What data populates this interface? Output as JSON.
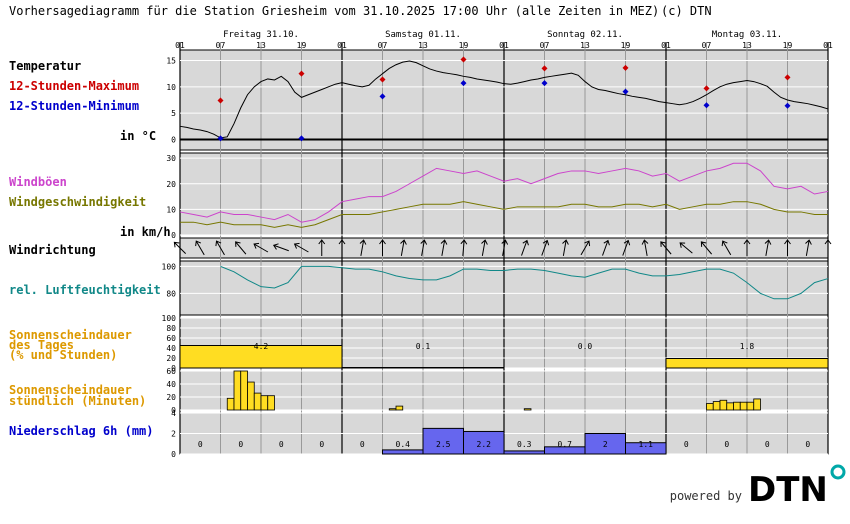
{
  "header": {
    "title": "Vorhersagediagramm für die Station Griesheim vom 31.10.2025 17:00 Uhr (alle Zeiten in MEZ)",
    "copyright": "(c) DTN"
  },
  "days": [
    {
      "label": "Freitag 31.10."
    },
    {
      "label": "Samstag 01.11."
    },
    {
      "label": "Sonntag 02.11."
    },
    {
      "label": "Montag 03.11."
    }
  ],
  "hour_ticks": [
    "01",
    "07",
    "13",
    "19",
    "01",
    "07",
    "13",
    "19",
    "01",
    "07",
    "13",
    "19",
    "01",
    "07",
    "13",
    "19",
    "01"
  ],
  "labels": {
    "temperature": "Temperatur",
    "max12": "12-Stunden-Maximum",
    "min12": "12-Stunden-Minimum",
    "unit_c": "in °C",
    "gusts": "Windböen",
    "windspeed": "Windgeschwindigkeit",
    "unit_kmh": "in km/h",
    "winddir": "Windrichtung",
    "humidity": "rel. Luftfeuchtigkeit",
    "sun_day_1": "Sonnenscheindauer",
    "sun_day_2": "des Tages",
    "sun_day_3": "(% und Stunden)",
    "sun_hour_1": "Sonnenscheindauer",
    "sun_hour_2": "stündlich (Minuten)",
    "precip": "Niederschlag 6h (mm)"
  },
  "footer": {
    "powered_by": "powered by",
    "logo": "DTN"
  },
  "colors": {
    "panel_bg": "#d8d8d8",
    "max": "#cc0000",
    "min": "#0000cc",
    "gust": "#cc44cc",
    "wind": "#777700",
    "humidity": "#118888",
    "sun": "#ffdd22",
    "precip": "#6666ee",
    "sun_label": "#dd9900",
    "logo_dot": "#00a8a8"
  },
  "chart_data": [
    {
      "type": "line",
      "name": "temperature",
      "x_unit": "hours since 31.10. 01:00",
      "xlim": [
        0,
        96
      ],
      "ylim": [
        -2,
        17
      ],
      "yticks": [
        0,
        5,
        10,
        15
      ],
      "x": [
        0,
        1,
        2,
        3,
        4,
        5,
        6,
        7,
        8,
        9,
        10,
        11,
        12,
        13,
        14,
        15,
        16,
        17,
        18,
        19,
        20,
        21,
        22,
        23,
        24,
        25,
        26,
        27,
        28,
        29,
        30,
        31,
        32,
        33,
        34,
        35,
        36,
        37,
        38,
        39,
        40,
        41,
        42,
        43,
        44,
        45,
        46,
        47,
        48,
        49,
        50,
        51,
        52,
        53,
        54,
        55,
        56,
        57,
        58,
        59,
        60,
        61,
        62,
        63,
        64,
        65,
        66,
        67,
        68,
        69,
        70,
        71,
        72,
        73,
        74,
        75,
        76,
        77,
        78,
        79,
        80,
        81,
        82,
        83,
        84,
        85,
        86,
        87,
        88,
        89,
        90,
        91,
        92,
        93,
        94,
        95,
        96
      ],
      "y": [
        2.5,
        2.3,
        2,
        1.8,
        1.5,
        1,
        0.3,
        0.5,
        3,
        6,
        8.5,
        10,
        11,
        11.5,
        11.3,
        12,
        11,
        9,
        8,
        8.5,
        9,
        9.5,
        10,
        10.5,
        10.8,
        10.5,
        10.2,
        10,
        10.3,
        11.5,
        12.5,
        13.5,
        14.2,
        14.7,
        14.9,
        14.6,
        14,
        13.4,
        13,
        12.7,
        12.5,
        12.3,
        12,
        11.8,
        11.5,
        11.3,
        11.1,
        10.9,
        10.6,
        10.5,
        10.7,
        11,
        11.3,
        11.5,
        11.8,
        12,
        12.2,
        12.4,
        12.6,
        12.2,
        11,
        10,
        9.5,
        9.3,
        9,
        8.7,
        8.5,
        8.2,
        8,
        7.8,
        7.5,
        7.2,
        7,
        6.8,
        6.6,
        6.8,
        7.2,
        7.8,
        8.5,
        9.3,
        10,
        10.5,
        10.8,
        11,
        11.2,
        11,
        10.6,
        10.1,
        9,
        8,
        7.5,
        7.2,
        7,
        6.8,
        6.5,
        6.2,
        5.8
      ]
    },
    {
      "type": "scatter",
      "name": "12-Stunden-Maximum",
      "x": [
        6,
        18,
        30,
        42,
        54,
        66,
        78,
        90
      ],
      "y": [
        7.4,
        12.5,
        11.4,
        15.2,
        13.5,
        13.6,
        9.7,
        11.8
      ]
    },
    {
      "type": "scatter",
      "name": "12-Stunden-Minimum",
      "x": [
        6,
        18,
        30,
        42,
        54,
        66,
        78,
        90
      ],
      "y": [
        0.2,
        0.2,
        8.2,
        10.7,
        10.7,
        9.1,
        6.5,
        6.4
      ]
    },
    {
      "type": "line",
      "name": "wind",
      "ylim": [
        0,
        32
      ],
      "yticks": [
        0,
        10,
        20,
        30
      ],
      "x": [
        0,
        2,
        4,
        6,
        8,
        10,
        12,
        14,
        16,
        18,
        20,
        22,
        24,
        26,
        28,
        30,
        32,
        34,
        36,
        38,
        40,
        42,
        44,
        46,
        48,
        50,
        52,
        54,
        56,
        58,
        60,
        62,
        64,
        66,
        68,
        70,
        72,
        74,
        76,
        78,
        80,
        82,
        84,
        86,
        88,
        90,
        92,
        94,
        96
      ],
      "gust": [
        9,
        8,
        7,
        9,
        8,
        8,
        7,
        6,
        8,
        5,
        6,
        9,
        13,
        14,
        15,
        15,
        17,
        20,
        23,
        26,
        25,
        24,
        25,
        23,
        21,
        22,
        20,
        22,
        24,
        25,
        25,
        24,
        25,
        26,
        25,
        23,
        24,
        21,
        23,
        25,
        26,
        28,
        28,
        25,
        19,
        18,
        19,
        16,
        17
      ],
      "speed": [
        5,
        5,
        4,
        5,
        4,
        4,
        4,
        3,
        4,
        3,
        4,
        6,
        8,
        8,
        8,
        9,
        10,
        11,
        12,
        12,
        12,
        13,
        12,
        11,
        10,
        11,
        11,
        11,
        11,
        12,
        12,
        11,
        11,
        12,
        12,
        11,
        12,
        10,
        11,
        12,
        12,
        13,
        13,
        12,
        10,
        9,
        9,
        8,
        8
      ]
    },
    {
      "type": "line",
      "name": "rel. Luftfeuchtigkeit",
      "ylim": [
        64,
        104
      ],
      "yticks": [
        60,
        80,
        100
      ],
      "x": [
        6,
        8,
        10,
        12,
        14,
        16,
        18,
        20,
        22,
        24,
        26,
        28,
        30,
        32,
        34,
        36,
        38,
        40,
        42,
        44,
        46,
        48,
        50,
        52,
        54,
        56,
        58,
        60,
        62,
        64,
        66,
        68,
        70,
        72,
        74,
        76,
        78,
        80,
        82,
        84,
        86,
        88,
        90,
        92,
        94,
        96
      ],
      "y": [
        100,
        96,
        90,
        85,
        84,
        88,
        100,
        100,
        100,
        99,
        98,
        98,
        96,
        93,
        91,
        90,
        90,
        93,
        98,
        98,
        97,
        97,
        98,
        98,
        97,
        95,
        93,
        92,
        95,
        98,
        98,
        95,
        93,
        93,
        94,
        96,
        98,
        98,
        95,
        88,
        80,
        76,
        76,
        80,
        88,
        91
      ]
    },
    {
      "type": "bar",
      "name": "Sonnenscheindauer des Tages",
      "categories": [
        "Freitag 31.10.",
        "Samstag 01.11.",
        "Sonntag 02.11.",
        "Montag 03.11."
      ],
      "percent": [
        45,
        1,
        0,
        19
      ],
      "hours": [
        4.2,
        0.1,
        0.0,
        1.8
      ],
      "hours_labels": [
        "4.2",
        "0.1",
        "0.0",
        "1.8"
      ],
      "ylim": [
        0,
        100
      ],
      "yticks": [
        0,
        20,
        40,
        60,
        80,
        100
      ]
    },
    {
      "type": "bar",
      "name": "Sonnenscheindauer stündlich",
      "ylim": [
        0,
        60
      ],
      "yticks": [
        0,
        20,
        40,
        60
      ],
      "x": [
        7,
        8,
        9,
        10,
        11,
        12,
        13,
        14,
        31,
        32,
        51,
        78,
        79,
        80,
        81,
        82,
        83,
        84,
        85
      ],
      "y": [
        18,
        60,
        60,
        43,
        26,
        22,
        22,
        0,
        2,
        6,
        2,
        10,
        13,
        15,
        11,
        12,
        12,
        12,
        17
      ]
    },
    {
      "type": "bar",
      "name": "Niederschlag 6h",
      "x_start": [
        0,
        6,
        12,
        18,
        24,
        30,
        36,
        42,
        48,
        54,
        60,
        66,
        72,
        78,
        84,
        90
      ],
      "values": [
        0,
        0,
        0,
        0,
        0,
        0.4,
        2.5,
        2.2,
        0.3,
        0.7,
        2,
        1.1,
        0,
        0,
        0,
        0
      ],
      "value_labels": [
        "0",
        "0",
        "0",
        "0",
        "0",
        "0.4",
        "2.5",
        "2.2",
        "0.3",
        "0.7",
        "2",
        "1.1",
        "0",
        "0",
        "0",
        "0"
      ],
      "ylim": [
        0,
        4
      ],
      "yticks": [
        0,
        2,
        4
      ]
    },
    {
      "type": "table",
      "name": "Windrichtung",
      "note": "arrow angle in degrees, 0 = pointing up",
      "x": [
        0,
        3,
        6,
        9,
        12,
        15,
        18,
        21,
        24,
        27,
        30,
        33,
        36,
        39,
        42,
        45,
        48,
        51,
        54,
        57,
        60,
        63,
        66,
        69,
        72,
        75,
        78,
        81,
        84,
        87,
        90,
        93,
        96
      ],
      "angle": [
        -45,
        -30,
        -30,
        -40,
        -60,
        -70,
        -60,
        0,
        0,
        10,
        0,
        10,
        10,
        10,
        5,
        10,
        10,
        20,
        20,
        10,
        30,
        20,
        20,
        -10,
        -40,
        -50,
        -40,
        -30,
        0,
        10,
        0,
        10,
        0
      ]
    }
  ]
}
